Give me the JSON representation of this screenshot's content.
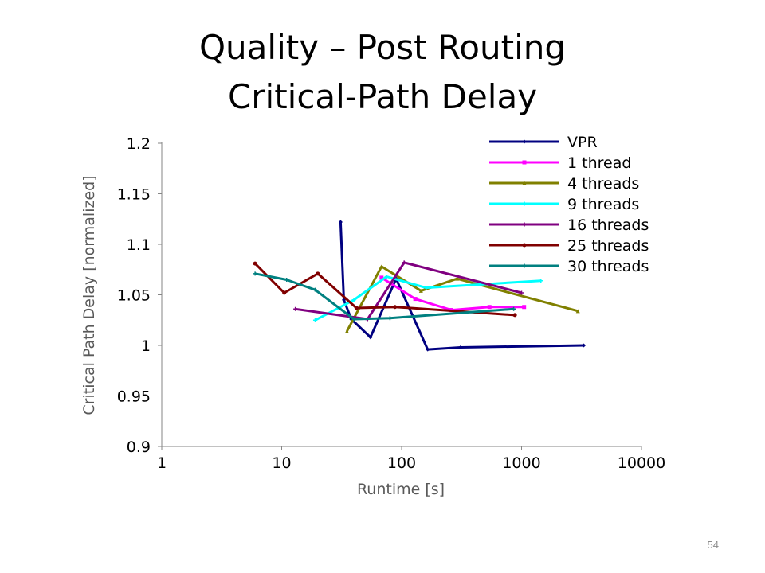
{
  "slide": {
    "title_line1": "Quality – Post Routing",
    "title_line2": "Critical-Path Delay",
    "page_number": "54"
  },
  "chart_data": {
    "type": "line",
    "title": "",
    "xlabel": "Runtime [s]",
    "ylabel": "Critical Path Delay [normalized]",
    "xscale": "log",
    "xlim": [
      1,
      10000
    ],
    "ylim": [
      0.9,
      1.2
    ],
    "xticks": [
      1,
      10,
      100,
      1000,
      10000
    ],
    "xtick_labels": [
      "1",
      "10",
      "100",
      "1000",
      "10000"
    ],
    "yticks": [
      0.9,
      0.95,
      1,
      1.05,
      1.1,
      1.15,
      1.2
    ],
    "ytick_labels": [
      "0.9",
      "0.95",
      "1",
      "1.05",
      "1.1",
      "1.15",
      "1.2"
    ],
    "grid": false,
    "legend": "top-right",
    "series": [
      {
        "name": "VPR",
        "color": "#000080",
        "marker": "diamond",
        "points": [
          [
            31,
            1.122
          ],
          [
            33,
            1.045
          ],
          [
            38,
            1.026
          ],
          [
            55,
            1.008
          ],
          [
            90,
            1.066
          ],
          [
            165,
            0.996
          ],
          [
            310,
            0.998
          ],
          [
            3300,
            1.0
          ]
        ]
      },
      {
        "name": "1 thread",
        "color": "#ff00ff",
        "marker": "square",
        "points": [
          [
            68,
            1.067
          ],
          [
            130,
            1.046
          ],
          [
            260,
            1.035
          ],
          [
            540,
            1.038
          ],
          [
            1050,
            1.038
          ]
        ]
      },
      {
        "name": "4 threads",
        "color": "#808000",
        "marker": "triangle",
        "points": [
          [
            35,
            1.014
          ],
          [
            68,
            1.078
          ],
          [
            145,
            1.054
          ],
          [
            290,
            1.066
          ],
          [
            2950,
            1.034
          ]
        ]
      },
      {
        "name": "9 threads",
        "color": "#00ffff",
        "marker": "x",
        "points": [
          [
            19,
            1.025
          ],
          [
            40,
            1.045
          ],
          [
            75,
            1.068
          ],
          [
            160,
            1.057
          ],
          [
            1450,
            1.064
          ]
        ]
      },
      {
        "name": "16 threads",
        "color": "#800080",
        "marker": "star",
        "points": [
          [
            13,
            1.036
          ],
          [
            52,
            1.026
          ],
          [
            105,
            1.082
          ],
          [
            1000,
            1.052
          ]
        ]
      },
      {
        "name": "25 threads",
        "color": "#800000",
        "marker": "circle",
        "points": [
          [
            6,
            1.081
          ],
          [
            10.5,
            1.052
          ],
          [
            20,
            1.071
          ],
          [
            42,
            1.037
          ],
          [
            88,
            1.038
          ],
          [
            880,
            1.03
          ]
        ]
      },
      {
        "name": "30 threads",
        "color": "#008080",
        "marker": "plus",
        "points": [
          [
            6,
            1.071
          ],
          [
            11,
            1.065
          ],
          [
            19,
            1.055
          ],
          [
            40,
            1.026
          ],
          [
            80,
            1.027
          ],
          [
            860,
            1.036
          ]
        ]
      }
    ]
  }
}
